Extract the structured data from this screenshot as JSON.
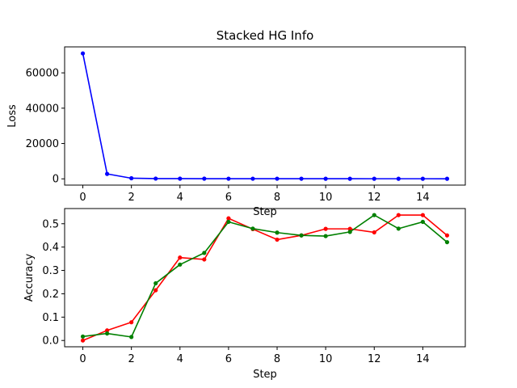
{
  "figure": {
    "title": "Stacked HG Info"
  },
  "chart_data": [
    {
      "type": "line",
      "title": "Stacked HG Info",
      "xlabel": "Step",
      "ylabel": "Loss",
      "xlim": [
        -0.75,
        15.75
      ],
      "ylim": [
        -3550,
        74700
      ],
      "xticks": [
        0,
        2,
        4,
        6,
        8,
        10,
        12,
        14
      ],
      "yticks": [
        0,
        20000,
        40000,
        60000
      ],
      "grid": false,
      "x": [
        0,
        1,
        2,
        3,
        4,
        5,
        6,
        7,
        8,
        9,
        10,
        11,
        12,
        13,
        14,
        15
      ],
      "series": [
        {
          "color": "#0000ff",
          "marker": "dot",
          "values": [
            71000,
            2800,
            350,
            150,
            120,
            100,
            90,
            80,
            75,
            70,
            65,
            60,
            55,
            50,
            50,
            45
          ]
        }
      ]
    },
    {
      "type": "line",
      "title": "",
      "xlabel": "Step",
      "ylabel": "Accuracy",
      "xlim": [
        -0.75,
        15.75
      ],
      "ylim": [
        -0.027,
        0.565
      ],
      "xticks": [
        0,
        2,
        4,
        6,
        8,
        10,
        12,
        14
      ],
      "yticks": [
        0.0,
        0.1,
        0.2,
        0.3,
        0.4,
        0.5
      ],
      "grid": false,
      "x": [
        0,
        1,
        2,
        3,
        4,
        5,
        6,
        7,
        8,
        9,
        10,
        11,
        12,
        13,
        14,
        15
      ],
      "series": [
        {
          "color": "#ff0000",
          "marker": "dot",
          "values": [
            0.0,
            0.043,
            0.078,
            0.215,
            0.355,
            0.347,
            0.523,
            0.477,
            0.432,
            0.45,
            0.478,
            0.478,
            0.463,
            0.537,
            0.537,
            0.45
          ]
        },
        {
          "color": "#008000",
          "marker": "dot",
          "values": [
            0.017,
            0.03,
            0.015,
            0.245,
            0.325,
            0.375,
            0.508,
            0.479,
            0.462,
            0.45,
            0.447,
            0.465,
            0.537,
            0.479,
            0.508,
            0.421
          ]
        }
      ]
    }
  ]
}
